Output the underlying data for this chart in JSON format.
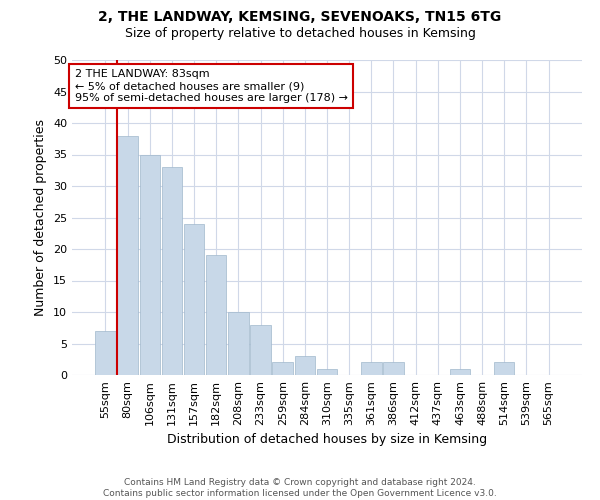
{
  "title1": "2, THE LANDWAY, KEMSING, SEVENOAKS, TN15 6TG",
  "title2": "Size of property relative to detached houses in Kemsing",
  "xlabel": "Distribution of detached houses by size in Kemsing",
  "ylabel": "Number of detached properties",
  "bar_labels": [
    "55sqm",
    "80sqm",
    "106sqm",
    "131sqm",
    "157sqm",
    "182sqm",
    "208sqm",
    "233sqm",
    "259sqm",
    "284sqm",
    "310sqm",
    "335sqm",
    "361sqm",
    "386sqm",
    "412sqm",
    "437sqm",
    "463sqm",
    "488sqm",
    "514sqm",
    "539sqm",
    "565sqm"
  ],
  "bar_values": [
    7,
    38,
    35,
    33,
    24,
    19,
    10,
    8,
    2,
    3,
    1,
    0,
    2,
    2,
    0,
    0,
    1,
    0,
    2,
    0,
    0
  ],
  "bar_color": "#c8d8e8",
  "bar_edge_color": "#a0b8cc",
  "annotation_title": "2 THE LANDWAY: 83sqm",
  "annotation_line1": "← 5% of detached houses are smaller (9)",
  "annotation_line2": "95% of semi-detached houses are larger (178) →",
  "annotation_box_color": "#ffffff",
  "annotation_border_color": "#cc0000",
  "property_line_color": "#cc0000",
  "ylim": [
    0,
    50
  ],
  "yticks": [
    0,
    5,
    10,
    15,
    20,
    25,
    30,
    35,
    40,
    45,
    50
  ],
  "footnote1": "Contains HM Land Registry data © Crown copyright and database right 2024.",
  "footnote2": "Contains public sector information licensed under the Open Government Licence v3.0.",
  "background_color": "#ffffff",
  "grid_color": "#d0d8e8",
  "title1_fontsize": 10,
  "title2_fontsize": 9,
  "ylabel_fontsize": 9,
  "xlabel_fontsize": 9,
  "tick_fontsize": 8,
  "annot_fontsize": 8,
  "footnote_fontsize": 6.5
}
